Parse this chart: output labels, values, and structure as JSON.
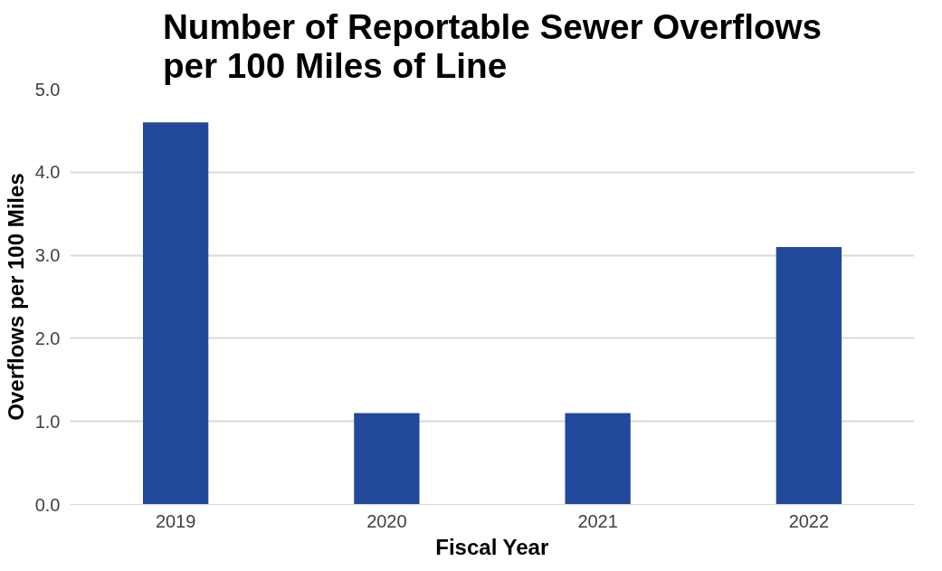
{
  "chart_data": {
    "type": "bar",
    "title": "Number of Reportable Sewer Overflows per 100 Miles of Line",
    "xlabel": "Fiscal Year",
    "ylabel": "Overflows per 100 Miles",
    "categories": [
      "2019",
      "2020",
      "2021",
      "2022"
    ],
    "values": [
      4.6,
      1.1,
      1.1,
      3.1
    ],
    "color": "#21489a",
    "ylim": [
      0,
      5
    ],
    "yticks": [
      {
        "value": 0,
        "label": "0.0"
      },
      {
        "value": 1,
        "label": "1.0"
      },
      {
        "value": 2,
        "label": "2.0"
      },
      {
        "value": 3,
        "label": "3.0"
      },
      {
        "value": 4,
        "label": "4.0"
      },
      {
        "value": 5,
        "label": "5.0"
      }
    ],
    "grid": "y"
  }
}
